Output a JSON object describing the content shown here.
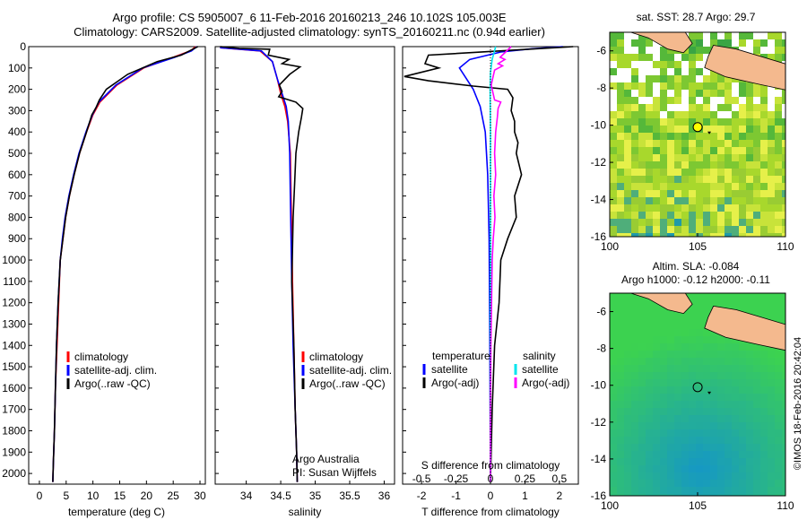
{
  "header": {
    "title_line1": "Argo profile: CS 5905007_6 11-Feb-2016 20160213_246 10.102S 105.003E",
    "title_line2": "Climatology: CARS2009. Satellite-adjusted climatology: synTS_20160211.nc (0.94d earlier)"
  },
  "colors": {
    "climatology": "#ff0000",
    "satellite": "#0000ff",
    "argo": "#000000",
    "sat_diff": "#00e5ee",
    "argo_diff": "#ff00ff",
    "land": "#f4b98e"
  },
  "chart_data": [
    {
      "id": "temperature",
      "type": "line",
      "xlabel": "temperature (deg C)",
      "ylabel": "",
      "xlim": [
        -2,
        31
      ],
      "ylim": [
        2050,
        0
      ],
      "xticks": [
        0,
        5,
        10,
        15,
        20,
        25,
        30
      ],
      "yticks": [
        0,
        100,
        200,
        300,
        400,
        500,
        600,
        700,
        800,
        900,
        1000,
        1100,
        1200,
        1300,
        1400,
        1500,
        1600,
        1700,
        1800,
        1900,
        2000
      ],
      "legend": [
        "climatology",
        "satellite-adj. clim.",
        "Argo(..raw -QC)"
      ],
      "series": [
        {
          "name": "climatology",
          "color": "#ff0000",
          "points": [
            [
              29.2,
              0
            ],
            [
              28.2,
              20
            ],
            [
              25,
              50
            ],
            [
              19.5,
              100
            ],
            [
              14.5,
              180
            ],
            [
              11.3,
              260
            ],
            [
              10,
              320
            ],
            [
              8.8,
              400
            ],
            [
              7.5,
              500
            ],
            [
              6.5,
              600
            ],
            [
              5.6,
              700
            ],
            [
              4.9,
              800
            ],
            [
              4.4,
              900
            ],
            [
              3.9,
              1000
            ],
            [
              3.6,
              1200
            ],
            [
              3.3,
              1400
            ],
            [
              3,
              1600
            ],
            [
              2.8,
              1800
            ],
            [
              2.6,
              1950
            ],
            [
              2.5,
              2040
            ]
          ]
        },
        {
          "name": "satellite-adj. clim.",
          "color": "#0000ff",
          "points": [
            [
              29.4,
              0
            ],
            [
              28.4,
              20
            ],
            [
              25.3,
              50
            ],
            [
              19.3,
              100
            ],
            [
              14.3,
              180
            ],
            [
              11.1,
              260
            ],
            [
              9.9,
              320
            ],
            [
              8.7,
              400
            ],
            [
              7.4,
              500
            ],
            [
              6.4,
              600
            ],
            [
              5.5,
              700
            ],
            [
              4.8,
              800
            ],
            [
              4.3,
              900
            ],
            [
              3.9,
              1000
            ],
            [
              3.5,
              1200
            ],
            [
              3.2,
              1400
            ],
            [
              3,
              1600
            ],
            [
              2.8,
              1800
            ],
            [
              2.6,
              1950
            ],
            [
              2.5,
              2040
            ]
          ]
        },
        {
          "name": "Argo(..raw -QC)",
          "color": "#000000",
          "points": [
            [
              29.6,
              0
            ],
            [
              28.8,
              10
            ],
            [
              26.5,
              40
            ],
            [
              22,
              70
            ],
            [
              16.5,
              130
            ],
            [
              12.5,
              200
            ],
            [
              11.2,
              250
            ],
            [
              10.6,
              285
            ],
            [
              9.8,
              320
            ],
            [
              8.8,
              400
            ],
            [
              7.5,
              500
            ],
            [
              6.5,
              600
            ],
            [
              5.6,
              700
            ],
            [
              4.9,
              800
            ],
            [
              4.4,
              900
            ],
            [
              3.9,
              1000
            ],
            [
              3.5,
              1200
            ],
            [
              3.2,
              1400
            ],
            [
              3,
              1600
            ],
            [
              2.8,
              1800
            ],
            [
              2.6,
              1950
            ],
            [
              2.5,
              2040
            ]
          ]
        }
      ]
    },
    {
      "id": "salinity",
      "type": "line",
      "xlabel": "salinity",
      "xlim": [
        33.55,
        36.15
      ],
      "ylim": [
        2050,
        0
      ],
      "xticks": [
        34,
        34.5,
        35,
        35.5,
        36
      ],
      "legend": [
        "climatology",
        "satellite-adj. clim.",
        "Argo(..raw -QC)"
      ],
      "annotation": [
        "Argo Australia",
        "PI: Susan Wijffels"
      ],
      "series": [
        {
          "name": "climatology",
          "color": "#ff0000",
          "points": [
            [
              33.62,
              5
            ],
            [
              34.2,
              20
            ],
            [
              34.38,
              70
            ],
            [
              34.45,
              150
            ],
            [
              34.5,
              220
            ],
            [
              34.56,
              280
            ],
            [
              34.6,
              350
            ],
            [
              34.64,
              500
            ],
            [
              34.65,
              700
            ],
            [
              34.66,
              900
            ],
            [
              34.67,
              1100
            ],
            [
              34.69,
              1400
            ],
            [
              34.71,
              1700
            ],
            [
              34.73,
              1900
            ],
            [
              34.74,
              2040
            ]
          ]
        },
        {
          "name": "satellite-adj. clim.",
          "color": "#0000ff",
          "points": [
            [
              33.62,
              5
            ],
            [
              34.22,
              20
            ],
            [
              34.38,
              70
            ],
            [
              34.45,
              150
            ],
            [
              34.52,
              220
            ],
            [
              34.58,
              280
            ],
            [
              34.61,
              350
            ],
            [
              34.63,
              500
            ],
            [
              34.64,
              700
            ],
            [
              34.65,
              900
            ],
            [
              34.66,
              1100
            ],
            [
              34.68,
              1400
            ],
            [
              34.71,
              1700
            ],
            [
              34.73,
              1900
            ],
            [
              34.74,
              2040
            ]
          ]
        },
        {
          "name": "Argo(..raw -QC)",
          "color": "#000000",
          "points": [
            [
              33.62,
              0
            ],
            [
              33.9,
              8
            ],
            [
              34.34,
              12
            ],
            [
              34.32,
              40
            ],
            [
              34.62,
              60
            ],
            [
              34.52,
              80
            ],
            [
              34.78,
              95
            ],
            [
              34.63,
              130
            ],
            [
              34.48,
              180
            ],
            [
              34.52,
              210
            ],
            [
              34.47,
              235
            ],
            [
              34.72,
              260
            ],
            [
              34.82,
              290
            ],
            [
              34.8,
              330
            ],
            [
              34.76,
              400
            ],
            [
              34.72,
              500
            ],
            [
              34.7,
              650
            ],
            [
              34.68,
              800
            ],
            [
              34.67,
              950
            ],
            [
              34.66,
              1100
            ],
            [
              34.69,
              1400
            ],
            [
              34.71,
              1700
            ],
            [
              34.73,
              1900
            ],
            [
              34.74,
              2040
            ]
          ]
        }
      ]
    },
    {
      "id": "difference",
      "type": "line",
      "xlabel": "T difference from climatology",
      "xlabel_top": "S difference from climatology",
      "xlim": [
        -2.55,
        2.55
      ],
      "ylim": [
        2050,
        0
      ],
      "xticks": [
        -2,
        -1,
        0,
        1,
        2
      ],
      "xticks_s": [
        -0.5,
        -0.25,
        0,
        0.25,
        0.5
      ],
      "legend_left": [
        "temperature",
        "satellite",
        "Argo(-adj)"
      ],
      "legend_right": [
        "salinity",
        "satellite",
        "Argo(-adj)"
      ],
      "series": [
        {
          "name": "temperature satellite",
          "color": "#0000ff",
          "points": [
            [
              2.1,
              0
            ],
            [
              1.2,
              10
            ],
            [
              0.3,
              25
            ],
            [
              -0.6,
              60
            ],
            [
              -0.9,
              100
            ],
            [
              -0.7,
              150
            ],
            [
              -0.5,
              200
            ],
            [
              -0.3,
              280
            ],
            [
              -0.15,
              400
            ],
            [
              -0.08,
              600
            ],
            [
              -0.04,
              900
            ],
            [
              -0.02,
              1300
            ],
            [
              0,
              2040
            ]
          ]
        },
        {
          "name": "temperature Argo(-adj)",
          "color": "#000000",
          "points": [
            [
              2.4,
              0
            ],
            [
              -1.8,
              40
            ],
            [
              -1.9,
              80
            ],
            [
              -1.5,
              100
            ],
            [
              -2.5,
              140
            ],
            [
              -1.8,
              160
            ],
            [
              -0.5,
              185
            ],
            [
              0.5,
              200
            ],
            [
              0.65,
              240
            ],
            [
              0.6,
              300
            ],
            [
              0.7,
              350
            ],
            [
              0.7,
              400
            ],
            [
              0.8,
              450
            ],
            [
              0.75,
              500
            ],
            [
              0.9,
              600
            ],
            [
              0.7,
              700
            ],
            [
              0.75,
              800
            ],
            [
              0.5,
              900
            ],
            [
              0.3,
              1000
            ],
            [
              0.25,
              1200
            ],
            [
              0.12,
              1400
            ],
            [
              0.05,
              1700
            ],
            [
              0,
              2040
            ]
          ]
        },
        {
          "name": "salinity satellite",
          "color": "#00e5ee",
          "points": [
            [
              0.15,
              0
            ],
            [
              0.05,
              60
            ],
            [
              0,
              120
            ],
            [
              -0.01,
              200
            ],
            [
              0,
              400
            ],
            [
              0,
              1000
            ],
            [
              0,
              2040
            ]
          ]
        },
        {
          "name": "salinity Argo(-adj)",
          "color": "#ff00ff",
          "points": [
            [
              0.6,
              0
            ],
            [
              0.28,
              50
            ],
            [
              0.42,
              60
            ],
            [
              0.22,
              80
            ],
            [
              0.35,
              90
            ],
            [
              0.12,
              110
            ],
            [
              0.02,
              180
            ],
            [
              0.12,
              250
            ],
            [
              0.3,
              260
            ],
            [
              0.22,
              290
            ],
            [
              0.2,
              330
            ],
            [
              0.15,
              400
            ],
            [
              0.12,
              500
            ],
            [
              0.15,
              600
            ],
            [
              0.1,
              700
            ],
            [
              0.13,
              800
            ],
            [
              0.08,
              900
            ],
            [
              0.05,
              1000
            ],
            [
              0.03,
              1200
            ],
            [
              0.01,
              1400
            ],
            [
              0,
              1700
            ],
            [
              0,
              2040
            ]
          ]
        }
      ]
    },
    {
      "id": "sst_map",
      "type": "heatmap",
      "title": "sat. SST: 28.7 Argo: 29.7",
      "xlim": [
        100,
        110
      ],
      "ylim": [
        -16,
        -5
      ],
      "xticks": [
        100,
        105,
        110
      ],
      "yticks": [
        -6,
        -8,
        -10,
        -12,
        -14,
        -16
      ],
      "float_position": [
        105.003,
        -10.102
      ]
    },
    {
      "id": "sla_map",
      "type": "heatmap",
      "title_line1": "Altim. SLA: -0.084",
      "title_line2": "Argo h1000: -0.12 h2000: -0.11",
      "xlim": [
        100,
        110
      ],
      "ylim": [
        -16,
        -5
      ],
      "xticks": [
        100,
        105,
        110
      ],
      "yticks": [
        -6,
        -8,
        -10,
        -12,
        -14,
        -16
      ],
      "float_position": [
        105.003,
        -10.102
      ]
    }
  ],
  "footer": {
    "credit": "©IMOS 18-Feb-2016 20:42:04"
  }
}
